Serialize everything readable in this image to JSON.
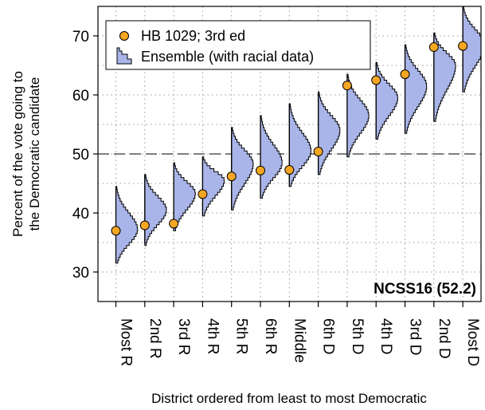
{
  "chart_data": {
    "type": "scatter",
    "xlabel": "District ordered from least to most Democratic",
    "ylabel_line1": "Percent of the vote going to",
    "ylabel_line2": "the Democratic candidate",
    "annotation": "NCSS16 (52.2)",
    "categories": [
      "Most R",
      "2nd R",
      "3rd R",
      "4th R",
      "5th R",
      "6th R",
      "Middle",
      "6th D",
      "5th D",
      "4th D",
      "3rd D",
      "2nd D",
      "Most D"
    ],
    "yticks": [
      30,
      40,
      50,
      60,
      70
    ],
    "ylim": [
      25,
      75
    ],
    "reference_line": 50,
    "grid": true,
    "legend_position": "top-left",
    "legend": {
      "plan_label": "HB 1029; 3rd ed",
      "ensemble_label": "Ensemble (with racial data)"
    },
    "series": [
      {
        "name": "HB 1029; 3rd ed",
        "values": [
          37.0,
          37.9,
          38.2,
          43.2,
          46.2,
          47.2,
          47.3,
          50.4,
          61.6,
          62.5,
          63.5,
          68.1,
          68.3
        ]
      }
    ],
    "ensemble": [
      {
        "min": 31.5,
        "max": 44.5,
        "median": 37.2
      },
      {
        "min": 34.8,
        "max": 46.5,
        "median": 40.5
      },
      {
        "min": 37.0,
        "max": 48.5,
        "median": 43.3
      },
      {
        "min": 39.5,
        "max": 49.5,
        "median": 45.5
      },
      {
        "min": 40.5,
        "max": 54.5,
        "median": 48.3
      },
      {
        "min": 42.5,
        "max": 56.5,
        "median": 48.5
      },
      {
        "min": 44.5,
        "max": 58.5,
        "median": 50.5
      },
      {
        "min": 46.5,
        "max": 60.5,
        "median": 54.0
      },
      {
        "min": 49.5,
        "max": 63.5,
        "median": 56.5
      },
      {
        "min": 52.5,
        "max": 65.5,
        "median": 59.5
      },
      {
        "min": 53.5,
        "max": 68.5,
        "median": 61.5
      },
      {
        "min": 55.5,
        "max": 70.5,
        "median": 65.0
      },
      {
        "min": 60.5,
        "max": 75.0,
        "median": 68.5
      }
    ],
    "colors": {
      "plan_marker": "#F5A623",
      "ensemble_fill": "#A9B4E8",
      "reference_line": "#555555",
      "grid": "#9a9a9a"
    }
  }
}
